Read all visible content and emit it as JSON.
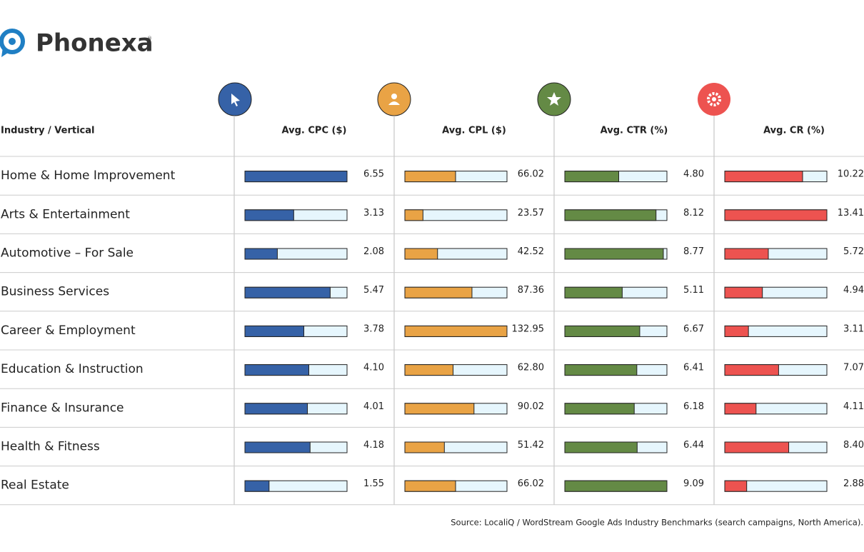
{
  "logo": "Phonexa",
  "table": {
    "header": "Industry / Vertical",
    "columns": [
      {
        "name": "Avg. CPC ($)",
        "color": "#3662a7"
      },
      {
        "name": "Avg. CPL ($)",
        "color": "#e9a345"
      },
      {
        "name": "Avg. CTR (%)",
        "color": "#648a45"
      },
      {
        "name": "Avg. CR (%)",
        "color": "#ed5350"
      }
    ],
    "rows": [
      {
        "label": "Home & Home Improvement",
        "values": [
          6.55,
          66.02,
          4.8,
          10.22
        ],
        "value_labels": [
          "6.55",
          "66.02",
          "4.80",
          "10.22"
        ]
      },
      {
        "label": "Arts & Entertainment",
        "values": [
          3.13,
          23.57,
          8.12,
          13.41
        ],
        "value_labels": [
          "3.13",
          "23.57",
          "8.12",
          "13.41"
        ]
      },
      {
        "label": "Automotive – For Sale",
        "values": [
          2.08,
          42.52,
          8.77,
          5.72
        ],
        "value_labels": [
          "2.08",
          "42.52",
          "8.77",
          "5.72"
        ]
      },
      {
        "label": "Business Services",
        "values": [
          5.47,
          87.36,
          5.11,
          4.94
        ],
        "value_labels": [
          "5.47",
          "87.36",
          "5.11",
          "4.94"
        ]
      },
      {
        "label": "Career & Employment",
        "values": [
          3.78,
          132.95,
          6.67,
          3.11
        ],
        "value_labels": [
          "3.78",
          "132.95",
          "6.67",
          "3.11"
        ]
      },
      {
        "label": "Education & Instruction",
        "values": [
          4.1,
          62.8,
          6.41,
          7.07
        ],
        "value_labels": [
          "4.10",
          "62.80",
          "6.41",
          "7.07"
        ]
      },
      {
        "label": "Finance & Insurance",
        "values": [
          4.01,
          90.02,
          6.18,
          4.11
        ],
        "value_labels": [
          "4.01",
          "90.02",
          "6.18",
          "4.11"
        ]
      },
      {
        "label": "Health & Fitness",
        "values": [
          4.18,
          51.42,
          6.44,
          8.4
        ],
        "value_labels": [
          "4.18",
          "51.42",
          "6.44",
          "8.40"
        ]
      },
      {
        "label": "Real Estate",
        "values": [
          1.55,
          66.02,
          9.09,
          2.88
        ],
        "value_labels": [
          "1.55",
          "66.02",
          "9.09",
          "2.88"
        ]
      }
    ]
  },
  "source": "Source: LocaliQ / WordStream Google Ads Industry Benchmarks (search campaigns, North America)."
}
